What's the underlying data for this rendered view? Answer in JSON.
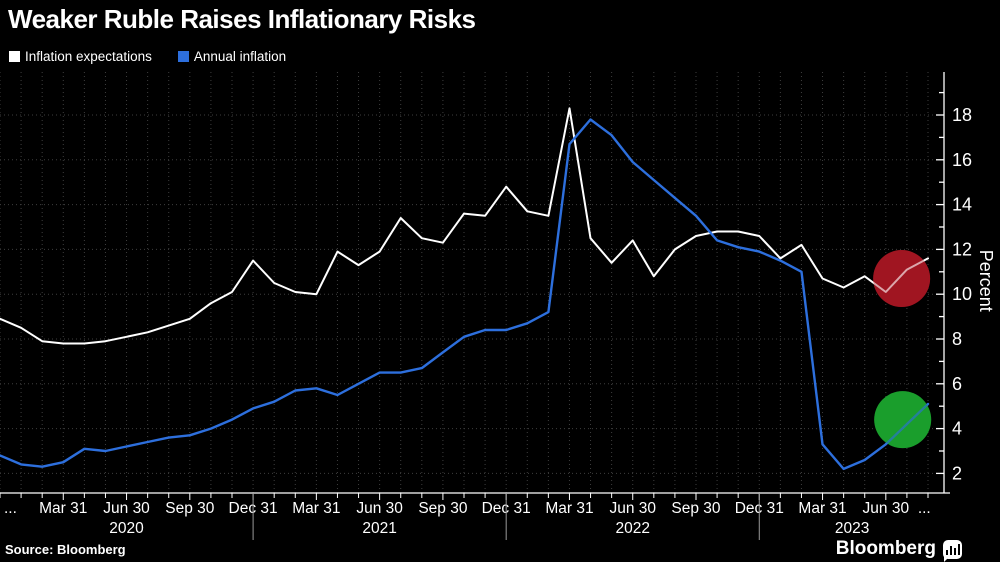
{
  "title": "Weaker Ruble Raises Inflationary Risks",
  "source": "Source: Bloomberg",
  "brand": "Bloomberg",
  "colors": {
    "background": "#000000",
    "text": "#ffffff",
    "grid": "#3e3e3e",
    "axis": "#ffffff",
    "year_separator": "#9a9a9a",
    "series_expectations": "#ffffff",
    "series_inflation": "#2d6fdd",
    "highlight_red": "#a11521",
    "highlight_green": "#1a9e2c"
  },
  "legend": [
    {
      "label": "Inflation expectations",
      "color": "#ffffff"
    },
    {
      "label": "Annual inflation",
      "color": "#2d6fdd"
    }
  ],
  "y_axis": {
    "label": "Percent",
    "tick_values": [
      2,
      4,
      6,
      8,
      10,
      12,
      14,
      16,
      18
    ],
    "minor_tick_step": 1,
    "range": [
      1.1,
      19.9
    ],
    "side": "right"
  },
  "x_axis": {
    "lead_ellipsis": "...",
    "trail_ellipsis": "...",
    "quarter_ticks": [
      {
        "label": "Mar 31",
        "month_index": 3
      },
      {
        "label": "Jun 30",
        "month_index": 6
      },
      {
        "label": "Sep 30",
        "month_index": 9
      },
      {
        "label": "Dec 31",
        "month_index": 12
      },
      {
        "label": "Mar 31",
        "month_index": 15
      },
      {
        "label": "Jun 30",
        "month_index": 18
      },
      {
        "label": "Sep 30",
        "month_index": 21
      },
      {
        "label": "Dec 31",
        "month_index": 24
      },
      {
        "label": "Mar 31",
        "month_index": 27
      },
      {
        "label": "Jun 30",
        "month_index": 30
      },
      {
        "label": "Sep 30",
        "month_index": 33
      },
      {
        "label": "Dec 31",
        "month_index": 36
      },
      {
        "label": "Mar 31",
        "month_index": 39
      },
      {
        "label": "Jun 30",
        "month_index": 42
      }
    ],
    "year_labels": [
      {
        "label": "2020",
        "center_month_index": 6.0
      },
      {
        "label": "2021",
        "center_month_index": 18.0
      },
      {
        "label": "2022",
        "center_month_index": 30.0
      },
      {
        "label": "2023",
        "center_month_index": 40.4
      }
    ],
    "year_boundary_month_indices": [
      12,
      24,
      36
    ]
  },
  "chart_data": {
    "type": "line",
    "title": "Weaker Ruble Raises Inflationary Risks",
    "ylabel": "Percent",
    "ylim": [
      1.1,
      19.9
    ],
    "grid": true,
    "legend_position": "top-left",
    "x": [
      "Dec 2019",
      "Jan 2020",
      "Feb 2020",
      "Mar 2020",
      "Apr 2020",
      "May 2020",
      "Jun 2020",
      "Jul 2020",
      "Aug 2020",
      "Sep 2020",
      "Oct 2020",
      "Nov 2020",
      "Dec 2020",
      "Jan 2021",
      "Feb 2021",
      "Mar 2021",
      "Apr 2021",
      "May 2021",
      "Jun 2021",
      "Jul 2021",
      "Aug 2021",
      "Sep 2021",
      "Oct 2021",
      "Nov 2021",
      "Dec 2021",
      "Jan 2022",
      "Feb 2022",
      "Mar 2022",
      "Apr 2022",
      "May 2022",
      "Jun 2022",
      "Jul 2022",
      "Aug 2022",
      "Sep 2022",
      "Oct 2022",
      "Nov 2022",
      "Dec 2022",
      "Jan 2023",
      "Feb 2023",
      "Mar 2023",
      "Apr 2023",
      "May 2023",
      "Jun 2023",
      "Jul 2023",
      "Aug 2023"
    ],
    "series": [
      {
        "name": "Inflation expectations",
        "color": "#ffffff",
        "values": [
          8.9,
          8.5,
          7.9,
          7.8,
          7.8,
          7.9,
          8.1,
          8.3,
          8.6,
          8.9,
          9.6,
          10.1,
          11.5,
          10.5,
          10.1,
          10.0,
          11.9,
          11.3,
          11.9,
          13.4,
          12.5,
          12.3,
          13.6,
          13.5,
          14.8,
          13.7,
          13.5,
          18.3,
          12.5,
          11.4,
          12.4,
          10.8,
          12.0,
          12.6,
          12.8,
          12.8,
          12.6,
          11.6,
          12.2,
          10.7,
          10.3,
          10.8,
          10.1,
          11.1,
          11.6
        ]
      },
      {
        "name": "Annual inflation",
        "color": "#2d6fdd",
        "values": [
          2.8,
          2.4,
          2.3,
          2.5,
          3.1,
          3.0,
          3.2,
          3.4,
          3.6,
          3.7,
          4.0,
          4.4,
          4.9,
          5.2,
          5.7,
          5.8,
          5.5,
          6.0,
          6.5,
          6.5,
          6.7,
          7.4,
          8.1,
          8.4,
          8.4,
          8.7,
          9.2,
          16.7,
          17.8,
          17.1,
          15.9,
          15.1,
          14.3,
          13.5,
          12.4,
          12.1,
          11.9,
          11.5,
          11.0,
          3.3,
          2.2,
          2.6,
          3.3,
          4.2,
          5.1
        ]
      }
    ],
    "annotations": [
      {
        "shape": "circle",
        "series": "Inflation expectations",
        "color": "#a11521",
        "month_index": 42.75,
        "value": 10.7,
        "radius": 28.5
      },
      {
        "shape": "circle",
        "series": "Annual inflation",
        "color": "#1a9e2c",
        "month_index": 42.8,
        "value": 4.4,
        "radius": 28.5
      }
    ]
  }
}
